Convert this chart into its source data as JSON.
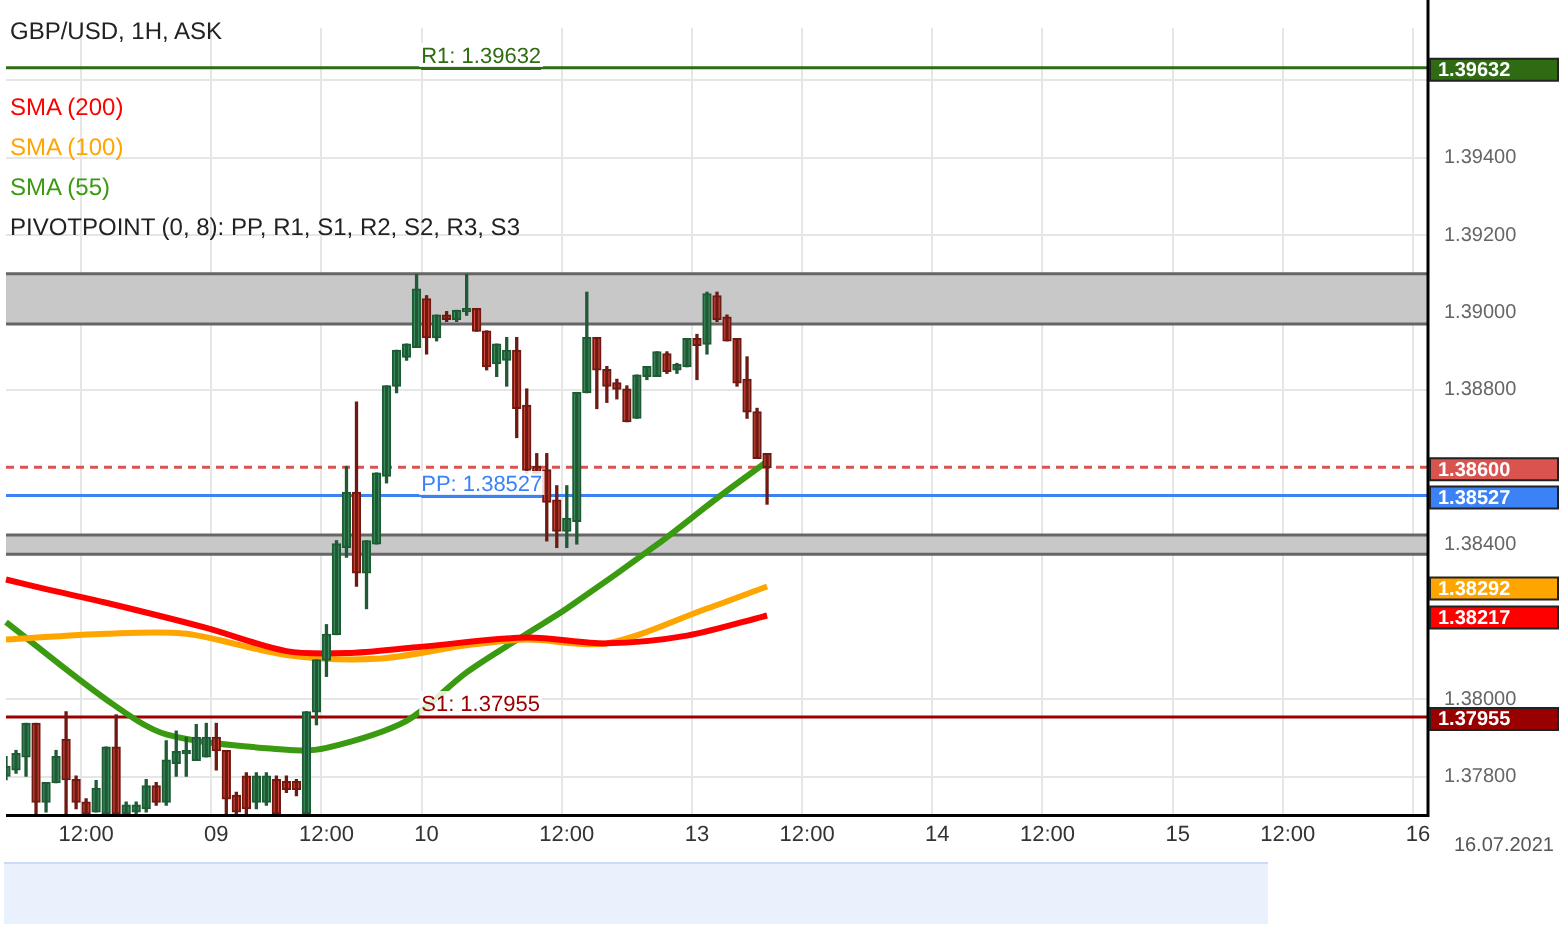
{
  "chart_data": {
    "type": "candlestick",
    "title": "GBP/USD, 1H, ASK",
    "categories": [
      null,
      null,
      null,
      null,
      null,
      null,
      null,
      null,
      "12:00",
      null,
      null,
      null,
      null,
      null,
      null,
      null,
      null,
      null,
      null,
      null,
      null,
      "09",
      null,
      null,
      null,
      null,
      null,
      null,
      null,
      null,
      null,
      null,
      "12:00",
      null,
      null,
      null,
      null,
      null,
      null,
      null,
      null,
      null,
      "10",
      null,
      null,
      null,
      null,
      null,
      null,
      null,
      null,
      null,
      null,
      null,
      null,
      null,
      "12:00",
      null,
      null,
      null,
      null,
      null,
      null,
      null,
      null,
      null,
      null,
      null,
      null,
      "13",
      null,
      null,
      null,
      null,
      null,
      null,
      null,
      null,
      null,
      null,
      "12:00",
      null,
      null,
      null,
      null,
      null,
      null,
      null,
      null,
      null,
      null,
      null,
      null,
      "14",
      null,
      null,
      null,
      null,
      null,
      null,
      null,
      null,
      null,
      null,
      "12:00",
      null,
      null,
      null,
      null,
      null,
      null,
      null,
      null,
      null,
      null,
      null,
      null,
      "15",
      null,
      null,
      null,
      null,
      null,
      null,
      null,
      null,
      null,
      null,
      "12:00",
      null,
      null,
      null,
      null,
      null,
      null,
      null,
      null,
      null,
      null,
      null,
      null,
      "16",
      null
    ],
    "ohlc": [
      [
        1.37802,
        1.37852,
        1.37793,
        1.37827
      ],
      [
        1.37818,
        1.37868,
        1.3781,
        1.3786
      ],
      [
        1.37852,
        1.37938,
        1.37802,
        1.37938
      ],
      [
        1.37938,
        1.37938,
        1.37705,
        1.37735
      ],
      [
        1.37735,
        1.37785,
        1.3771,
        1.37785
      ],
      [
        1.37785,
        1.37868,
        1.37785,
        1.37852
      ],
      [
        1.37897,
        1.37968,
        1.37705,
        1.37793
      ],
      [
        1.37793,
        1.37802,
        1.37718,
        1.37735
      ],
      [
        1.37735,
        1.37743,
        1.37705,
        1.37705
      ],
      [
        1.3771,
        1.3779,
        1.3771,
        1.3777
      ],
      [
        1.37705,
        1.37877,
        1.37705,
        1.37877
      ],
      [
        1.37877,
        1.3796,
        1.37705,
        1.37705
      ],
      [
        1.37705,
        1.37735,
        1.37705,
        1.37727
      ],
      [
        1.3771,
        1.37735,
        1.37705,
        1.37727
      ],
      [
        1.37718,
        1.37793,
        1.3771,
        1.37777
      ],
      [
        1.37777,
        1.37785,
        1.37727,
        1.37735
      ],
      [
        1.37735,
        1.37893,
        1.37727,
        1.37843
      ],
      [
        1.37835,
        1.37918,
        1.37802,
        1.37865
      ],
      [
        1.3786,
        1.37902,
        1.37802,
        1.37868
      ],
      [
        1.37843,
        1.37935,
        1.37843,
        1.37902
      ],
      [
        1.37852,
        1.37938,
        1.37852,
        1.37902
      ],
      [
        1.37902,
        1.37938,
        1.37818,
        1.37868
      ],
      [
        1.37868,
        1.37868,
        1.37705,
        1.37743
      ],
      [
        1.37752,
        1.3776,
        1.37705,
        1.3771
      ],
      [
        1.37802,
        1.3781,
        1.37705,
        1.37718
      ],
      [
        1.37735,
        1.3781,
        1.37718,
        1.37802
      ],
      [
        1.37735,
        1.3781,
        1.37727,
        1.37802
      ],
      [
        1.37793,
        1.37802,
        1.37705,
        1.37705
      ],
      [
        1.37788,
        1.37802,
        1.3776,
        1.37768
      ],
      [
        1.37788,
        1.37793,
        1.37752,
        1.37768
      ],
      [
        1.37705,
        1.37968,
        1.37705,
        1.37968
      ],
      [
        1.37968,
        1.38102,
        1.37935,
        1.38102
      ],
      [
        1.38102,
        1.38193,
        1.3806,
        1.38168
      ],
      [
        1.38168,
        1.3841,
        1.38168,
        1.38402
      ],
      [
        1.38393,
        1.38602,
        1.38368,
        1.38535
      ],
      [
        1.38535,
        1.38768,
        1.38293,
        1.38327
      ],
      [
        1.38327,
        1.3841,
        1.38235,
        1.3841
      ],
      [
        1.38402,
        1.38585,
        1.38402,
        1.38585
      ],
      [
        1.38577,
        1.3881,
        1.3856,
        1.3881
      ],
      [
        1.3881,
        1.38902,
        1.38793,
        1.38902
      ],
      [
        1.38885,
        1.38918,
        1.38877,
        1.38918
      ],
      [
        1.3891,
        1.39098,
        1.3891,
        1.3906
      ],
      [
        1.39035,
        1.39043,
        1.38893,
        1.38935
      ],
      [
        1.38935,
        1.38993,
        1.38927,
        1.38993
      ],
      [
        1.38993,
        1.39002,
        1.38977,
        1.38982
      ],
      [
        1.38982,
        1.39005,
        1.38977,
        1.39005
      ],
      [
        1.39002,
        1.39098,
        1.38993,
        1.3901
      ],
      [
        1.3901,
        1.3901,
        1.38952,
        1.38952
      ],
      [
        1.38952,
        1.38952,
        1.38852,
        1.3886
      ],
      [
        1.38868,
        1.38918,
        1.38835,
        1.38918
      ],
      [
        1.38877,
        1.38935,
        1.3881,
        1.38902
      ],
      [
        1.38902,
        1.38935,
        1.38677,
        1.38752
      ],
      [
        1.3876,
        1.38802,
        1.38585,
        1.38593
      ],
      [
        1.38602,
        1.38635,
        1.38585,
        1.38585
      ],
      [
        1.38593,
        1.38635,
        1.3841,
        1.3851
      ],
      [
        1.38515,
        1.38552,
        1.38393,
        1.38435
      ],
      [
        1.38435,
        1.38552,
        1.38393,
        1.38468
      ],
      [
        1.3846,
        1.38793,
        1.38402,
        1.38793
      ],
      [
        1.38793,
        1.39052,
        1.38793,
        1.38935
      ],
      [
        1.38935,
        1.38935,
        1.38752,
        1.38852
      ],
      [
        1.38852,
        1.3886,
        1.38768,
        1.3881
      ],
      [
        1.38818,
        1.38827,
        1.38777,
        1.38802
      ],
      [
        1.38802,
        1.3881,
        1.38718,
        1.38718
      ],
      [
        1.38727,
        1.38838,
        1.38727,
        1.38838
      ],
      [
        1.38835,
        1.3886,
        1.38827,
        1.3886
      ],
      [
        1.38835,
        1.38898,
        1.38835,
        1.38898
      ],
      [
        1.38893,
        1.38898,
        1.38843,
        1.38848
      ],
      [
        1.38852,
        1.38868,
        1.38843,
        1.38865
      ],
      [
        1.3886,
        1.38932,
        1.3886,
        1.38932
      ],
      [
        1.38932,
        1.38943,
        1.38827,
        1.38915
      ],
      [
        1.38918,
        1.39052,
        1.38893,
        1.39048
      ],
      [
        1.39043,
        1.39052,
        1.38977,
        1.38982
      ],
      [
        1.38988,
        1.38993,
        1.38927,
        1.38927
      ],
      [
        1.38932,
        1.38932,
        1.3881,
        1.38818
      ],
      [
        1.38827,
        1.38885,
        1.38727,
        1.38743
      ],
      [
        1.38743,
        1.38752,
        1.38623,
        1.38623
      ],
      [
        1.38635,
        1.38635,
        1.38505,
        1.386
      ],
      null,
      null,
      null,
      null,
      null,
      null,
      null,
      null,
      null,
      null,
      null,
      null,
      null,
      null,
      null,
      null,
      null,
      null,
      null,
      null,
      null,
      null,
      null,
      null,
      null,
      null,
      null,
      null,
      null,
      null,
      null,
      null,
      null,
      null,
      null,
      null,
      null,
      null,
      null,
      null,
      null,
      null,
      null,
      null,
      null,
      null,
      null,
      null,
      null,
      null,
      null,
      null,
      null,
      null,
      null,
      null,
      null,
      null,
      null,
      null,
      null,
      null,
      null,
      null,
      null,
      null
    ],
    "series": [
      {
        "name": "SMA (200)",
        "type": "line",
        "color": "#ff0000",
        "values": [
          1.3831,
          null,
          null,
          null,
          1.38285,
          null,
          null,
          null,
          null,
          null,
          1.3825,
          null,
          null,
          null,
          null,
          null,
          null,
          null,
          null,
          null,
          1.38185,
          null,
          null,
          null,
          null,
          null,
          null,
          null,
          1.38125,
          null,
          null,
          null,
          null,
          null,
          1.3812,
          null,
          null,
          null,
          null,
          null,
          null,
          1.38135,
          null,
          null,
          null,
          null,
          null,
          null,
          null,
          null,
          null,
          null,
          1.3816,
          null,
          null,
          null,
          null,
          null,
          null,
          null,
          1.38145,
          null,
          null,
          null,
          null,
          null,
          null,
          null,
          1.38165,
          null,
          null,
          null,
          null,
          null,
          null,
          null,
          1.38217,
          null,
          null,
          null,
          null,
          null,
          null,
          null,
          null,
          null,
          null,
          null,
          null,
          null,
          null,
          null,
          null,
          null,
          null,
          null,
          null,
          null,
          null,
          null,
          null,
          null,
          null,
          null,
          null,
          null,
          null,
          null,
          null,
          null,
          null,
          null,
          null,
          null,
          null,
          null,
          null,
          null,
          null,
          null,
          null,
          null,
          null,
          null,
          null,
          null,
          null,
          null,
          null,
          null,
          null,
          null,
          null,
          null,
          null,
          null,
          null,
          null,
          null,
          null,
          null,
          null,
          null
        ]
      },
      {
        "name": "SMA (100)",
        "type": "line",
        "color": "#ffa500",
        "values": [
          1.38155,
          null,
          null,
          null,
          null,
          null,
          null,
          null,
          null,
          null,
          1.3817,
          null,
          null,
          null,
          null,
          null,
          null,
          null,
          1.3817,
          null,
          null,
          null,
          null,
          null,
          null,
          null,
          null,
          null,
          1.38115,
          null,
          null,
          null,
          null,
          null,
          null,
          null,
          null,
          1.38105,
          null,
          null,
          null,
          null,
          null,
          null,
          null,
          null,
          1.3814,
          null,
          null,
          null,
          null,
          null,
          1.38155,
          null,
          null,
          null,
          null,
          null,
          null,
          null,
          1.38145,
          null,
          null,
          null,
          null,
          null,
          null,
          null,
          null,
          null,
          1.38235,
          null,
          null,
          null,
          null,
          null,
          1.38292,
          null,
          null,
          null,
          null,
          null,
          null,
          null,
          null,
          null,
          null,
          null,
          null,
          null,
          null,
          null,
          null,
          null,
          null,
          null,
          null,
          null,
          null,
          null,
          null,
          null,
          null,
          null,
          null,
          null,
          null,
          null,
          null,
          null,
          null,
          null,
          null,
          null,
          null,
          null,
          null,
          null,
          null,
          null,
          null,
          null,
          null,
          null,
          null,
          null,
          null,
          null,
          null,
          null,
          null,
          null,
          null,
          null,
          null,
          null,
          null,
          null,
          null,
          null,
          null,
          null,
          null
        ]
      },
      {
        "name": "SMA (55)",
        "type": "line",
        "color": "#3a9a10",
        "values": [
          1.382,
          null,
          null,
          null,
          null,
          null,
          null,
          null,
          null,
          null,
          1.38,
          null,
          null,
          null,
          null,
          null,
          1.3791,
          null,
          null,
          null,
          null,
          null,
          null,
          null,
          null,
          null,
          null,
          null,
          1.3787,
          null,
          null,
          null,
          1.37875,
          null,
          null,
          null,
          null,
          null,
          null,
          null,
          1.37945,
          null,
          null,
          null,
          null,
          null,
          1.3807,
          null,
          null,
          null,
          null,
          null,
          1.3817,
          null,
          null,
          null,
          1.38235,
          null,
          null,
          null,
          null,
          null,
          null,
          null,
          null,
          1.384,
          null,
          null,
          null,
          null,
          null,
          1.3852,
          null,
          null,
          null,
          null,
          1.38615,
          null,
          null,
          null,
          null,
          null,
          null,
          null,
          null,
          null,
          null,
          null,
          null,
          null,
          null,
          null,
          null,
          null,
          null,
          null,
          null,
          null,
          null,
          null,
          null,
          null,
          null,
          null,
          null,
          null,
          null,
          null,
          null,
          null,
          null,
          null,
          null,
          null,
          null,
          null,
          null,
          null,
          null,
          null,
          null,
          null,
          null,
          null,
          null,
          null,
          null,
          null,
          null,
          null,
          null,
          null,
          null,
          null,
          null,
          null,
          null,
          null,
          null,
          null,
          null,
          null,
          null
        ]
      }
    ],
    "legend": "top left",
    "annotations": [
      "PIVOTPOINT (0, 8): PP, R1, S1, R2, S2, R3, S3",
      "16.07.2021"
    ],
    "ref_lines": [
      {
        "axis": "y",
        "value": 1.39632,
        "label": "R1: 1.39632",
        "color": "#2e6b12"
      },
      {
        "axis": "y",
        "value": 1.38527,
        "label": "PP: 1.38527",
        "color": "#3b82f6"
      },
      {
        "axis": "y",
        "value": 1.37955,
        "label": "S1: 1.37955",
        "color": "#990000"
      },
      {
        "axis": "y",
        "value": 1.386,
        "label": null,
        "color": "#d9534f",
        "line_style": "dashed"
      }
    ],
    "bands": [
      {
        "axis": "y",
        "from": 1.3897,
        "to": 1.391,
        "color": "#c8c8c8"
      },
      {
        "axis": "y",
        "from": 1.38375,
        "to": 1.38425,
        "color": "#c8c8c8"
      }
    ],
    "ylim": [
      1.377,
      1.39735
    ],
    "yticks": [
      {
        "value": 1.378,
        "label": "1.37800"
      },
      {
        "value": 1.37955,
        "label": "1.37955"
      },
      {
        "value": 1.38,
        "label": "1.38000"
      },
      {
        "value": 1.38217,
        "label": "1.38217"
      },
      {
        "value": 1.38292,
        "label": "1.38292"
      },
      {
        "value": 1.384,
        "label": "1.38400"
      },
      {
        "value": 1.38527,
        "label": "1.38527"
      },
      {
        "value": 1.386,
        "label": "1.38600"
      },
      {
        "value": 1.388,
        "label": "1.38800"
      },
      {
        "value": 1.39,
        "label": "1.39000"
      },
      {
        "value": 1.392,
        "label": "1.39200"
      },
      {
        "value": 1.394,
        "label": "1.39400"
      },
      {
        "value": 1.396,
        "label": null
      },
      {
        "value": 1.39632,
        "label": "1.39632"
      }
    ],
    "grid": true
  }
}
